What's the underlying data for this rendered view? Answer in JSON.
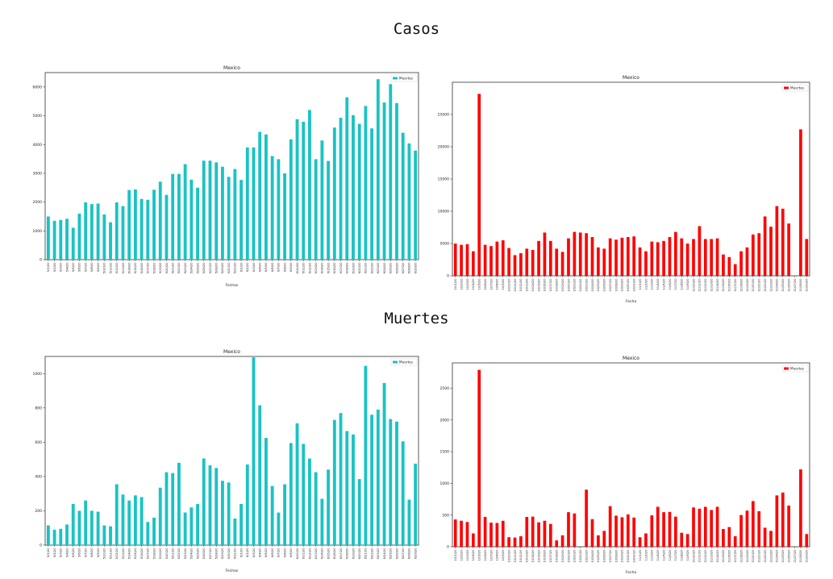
{
  "sections": [
    {
      "title": "Casos"
    },
    {
      "title": "Muertes"
    }
  ],
  "chart_data": [
    {
      "type": "bar",
      "title": "Mexico",
      "xlabel": "Fechas",
      "ylabel": "",
      "legend": "top-right",
      "ylim": [
        0,
        6500
      ],
      "yticks": [
        0,
        1000,
        2000,
        3000,
        4000,
        5000,
        6000
      ],
      "color": "#1ac3c3",
      "series": [
        {
          "name": "Muertes",
          "values": [
            1500,
            1350,
            1380,
            1420,
            1110,
            1600,
            1990,
            1930,
            1950,
            1570,
            1300,
            1990,
            1860,
            2420,
            2440,
            2110,
            2080,
            2430,
            2710,
            2250,
            2980,
            2980,
            3320,
            2780,
            2500,
            3440,
            3440,
            3380,
            3230,
            2880,
            3150,
            2770,
            3900,
            3900,
            4440,
            4350,
            3600,
            3490,
            3000,
            4180,
            4880,
            4790,
            5200,
            3490,
            4140,
            3430,
            4590,
            4930,
            5640,
            5020,
            4720,
            5340,
            4560,
            6270,
            5460,
            6100,
            5440,
            4410,
            4040,
            3790
          ]
        }
      ],
      "categories": [
        "5/1/20",
        "5/2/20",
        "5/3/20",
        "5/4/20",
        "5/5/20",
        "5/6/20",
        "5/7/20",
        "5/8/20",
        "5/9/20",
        "5/10/20",
        "5/11/20",
        "5/12/20",
        "5/13/20",
        "5/14/20",
        "5/15/20",
        "5/16/20",
        "5/17/20",
        "5/18/20",
        "5/19/20",
        "5/20/20",
        "5/21/20",
        "5/22/20",
        "5/23/20",
        "5/24/20",
        "5/25/20",
        "5/26/20",
        "5/27/20",
        "5/28/20",
        "5/29/20",
        "5/30/20",
        "5/31/20",
        "6/1/20",
        "6/2/20",
        "6/3/20",
        "6/4/20",
        "6/5/20",
        "6/6/20",
        "6/7/20",
        "6/8/20",
        "6/9/20",
        "6/10/20",
        "6/11/20",
        "6/12/20",
        "6/13/20",
        "6/14/20",
        "6/15/20",
        "6/16/20",
        "6/17/20",
        "6/18/20",
        "6/19/20",
        "6/20/20",
        "6/21/20",
        "6/22/20",
        "6/23/20",
        "6/24/20",
        "6/25/20",
        "6/26/20",
        "6/27/20",
        "6/28/20",
        "6/29/20"
      ]
    },
    {
      "type": "bar",
      "title": "Mexico",
      "xlabel": "Fecha",
      "ylabel": "",
      "legend": "top-right",
      "ylim": [
        0,
        30000
      ],
      "yticks": [
        0,
        5000,
        10000,
        15000,
        20000,
        25000
      ],
      "color": "#ff0000",
      "series": [
        {
          "name": "Muertes",
          "values": [
            5000,
            4800,
            4900,
            3800,
            28200,
            4800,
            4600,
            5300,
            5500,
            4300,
            3200,
            3500,
            4200,
            4000,
            5400,
            6700,
            5400,
            4200,
            3700,
            5800,
            6800,
            6700,
            6600,
            6000,
            4400,
            4200,
            5800,
            5600,
            5900,
            6000,
            6100,
            4400,
            3800,
            5300,
            5200,
            5400,
            6000,
            6800,
            5800,
            5000,
            5700,
            7700,
            5700,
            5700,
            5800,
            3300,
            2900,
            1800,
            3800,
            4400,
            6400,
            6600,
            9200,
            7600,
            10800,
            10400,
            8100,
            0,
            22700,
            5700
          ]
        }
      ],
      "categories": [
        "10/1/20",
        "10/2/20",
        "10/3/20",
        "10/4/20",
        "10/5/20",
        "10/6/20",
        "10/7/20",
        "10/8/20",
        "10/9/20",
        "10/10/20",
        "10/11/20",
        "10/12/20",
        "10/13/20",
        "10/14/20",
        "10/15/20",
        "10/16/20",
        "10/17/20",
        "10/18/20",
        "10/19/20",
        "10/20/20",
        "10/21/20",
        "10/22/20",
        "10/23/20",
        "10/24/20",
        "10/25/20",
        "10/26/20",
        "10/27/20",
        "10/28/20",
        "10/29/20",
        "10/30/20",
        "10/31/20",
        "11/1/20",
        "11/2/20",
        "11/3/20",
        "11/4/20",
        "11/5/20",
        "11/6/20",
        "11/7/20",
        "11/8/20",
        "11/9/20",
        "11/10/20",
        "11/11/20",
        "11/12/20",
        "11/13/20",
        "11/14/20",
        "11/15/20",
        "11/16/20",
        "11/17/20",
        "11/18/20",
        "11/19/20",
        "11/20/20",
        "11/21/20",
        "11/22/20",
        "11/23/20",
        "11/24/20",
        "11/25/20",
        "11/26/20",
        "11/27/20",
        "11/28/20",
        "11/29/20"
      ]
    },
    {
      "type": "bar",
      "title": "Mexico",
      "xlabel": "Fechas",
      "ylabel": "",
      "legend": "top-right",
      "ylim": [
        0,
        1100
      ],
      "yticks": [
        0,
        200,
        400,
        600,
        800,
        1000
      ],
      "color": "#1ac3c3",
      "series": [
        {
          "name": "Muertes",
          "values": [
            115,
            90,
            95,
            120,
            240,
            200,
            260,
            200,
            195,
            115,
            110,
            355,
            295,
            260,
            290,
            280,
            135,
            160,
            335,
            425,
            420,
            480,
            190,
            220,
            240,
            505,
            465,
            450,
            375,
            365,
            155,
            240,
            470,
            1095,
            815,
            625,
            345,
            190,
            355,
            595,
            710,
            590,
            505,
            425,
            270,
            440,
            730,
            770,
            665,
            645,
            385,
            1045,
            760,
            790,
            945,
            735,
            720,
            605,
            265,
            475
          ]
        }
      ],
      "categories": [
        "5/1/20",
        "5/2/20",
        "5/3/20",
        "5/4/20",
        "5/5/20",
        "5/6/20",
        "5/7/20",
        "5/8/20",
        "5/9/20",
        "5/10/20",
        "5/11/20",
        "5/12/20",
        "5/13/20",
        "5/14/20",
        "5/15/20",
        "5/16/20",
        "5/17/20",
        "5/18/20",
        "5/19/20",
        "5/20/20",
        "5/21/20",
        "5/22/20",
        "5/23/20",
        "5/24/20",
        "5/25/20",
        "5/26/20",
        "5/27/20",
        "5/28/20",
        "5/29/20",
        "5/30/20",
        "5/31/20",
        "6/1/20",
        "6/2/20",
        "6/3/20",
        "6/4/20",
        "6/5/20",
        "6/6/20",
        "6/7/20",
        "6/8/20",
        "6/9/20",
        "6/10/20",
        "6/11/20",
        "6/12/20",
        "6/13/20",
        "6/14/20",
        "6/15/20",
        "6/16/20",
        "6/17/20",
        "6/18/20",
        "6/19/20",
        "6/20/20",
        "6/21/20",
        "6/22/20",
        "6/23/20",
        "6/24/20",
        "6/25/20",
        "6/26/20",
        "6/27/20",
        "6/28/20",
        "6/29/20"
      ]
    },
    {
      "type": "bar",
      "title": "Mexico",
      "xlabel": "Fecha",
      "ylabel": "",
      "legend": "top-right",
      "ylim": [
        0,
        2900
      ],
      "yticks": [
        0,
        500,
        1000,
        1500,
        2000,
        2500
      ],
      "color": "#ff0000",
      "series": [
        {
          "name": "Muertes",
          "values": [
            430,
            410,
            390,
            210,
            2790,
            470,
            380,
            375,
            410,
            150,
            145,
            165,
            470,
            475,
            385,
            410,
            360,
            100,
            180,
            545,
            525,
            0,
            900,
            435,
            180,
            250,
            640,
            490,
            465,
            510,
            460,
            150,
            210,
            495,
            630,
            545,
            550,
            475,
            220,
            200,
            620,
            600,
            630,
            580,
            630,
            280,
            310,
            165,
            500,
            570,
            720,
            560,
            300,
            250,
            810,
            855,
            650,
            0,
            1220,
            200
          ]
        }
      ],
      "categories": [
        "10/1/20",
        "10/2/20",
        "10/3/20",
        "10/4/20",
        "10/5/20",
        "10/6/20",
        "10/7/20",
        "10/8/20",
        "10/9/20",
        "10/10/20",
        "10/11/20",
        "10/12/20",
        "10/13/20",
        "10/14/20",
        "10/15/20",
        "10/16/20",
        "10/17/20",
        "10/18/20",
        "10/19/20",
        "10/20/20",
        "10/21/20",
        "10/22/20",
        "10/23/20",
        "10/24/20",
        "10/25/20",
        "10/26/20",
        "10/27/20",
        "10/28/20",
        "10/29/20",
        "10/30/20",
        "10/31/20",
        "11/1/20",
        "11/2/20",
        "11/3/20",
        "11/4/20",
        "11/5/20",
        "11/6/20",
        "11/7/20",
        "11/8/20",
        "11/9/20",
        "11/10/20",
        "11/11/20",
        "11/12/20",
        "11/13/20",
        "11/14/20",
        "11/15/20",
        "11/16/20",
        "11/17/20",
        "11/18/20",
        "11/19/20",
        "11/20/20",
        "11/21/20",
        "11/22/20",
        "11/23/20",
        "11/24/20",
        "11/25/20",
        "11/26/20",
        "11/27/20",
        "11/28/20",
        "11/29/20"
      ]
    }
  ]
}
